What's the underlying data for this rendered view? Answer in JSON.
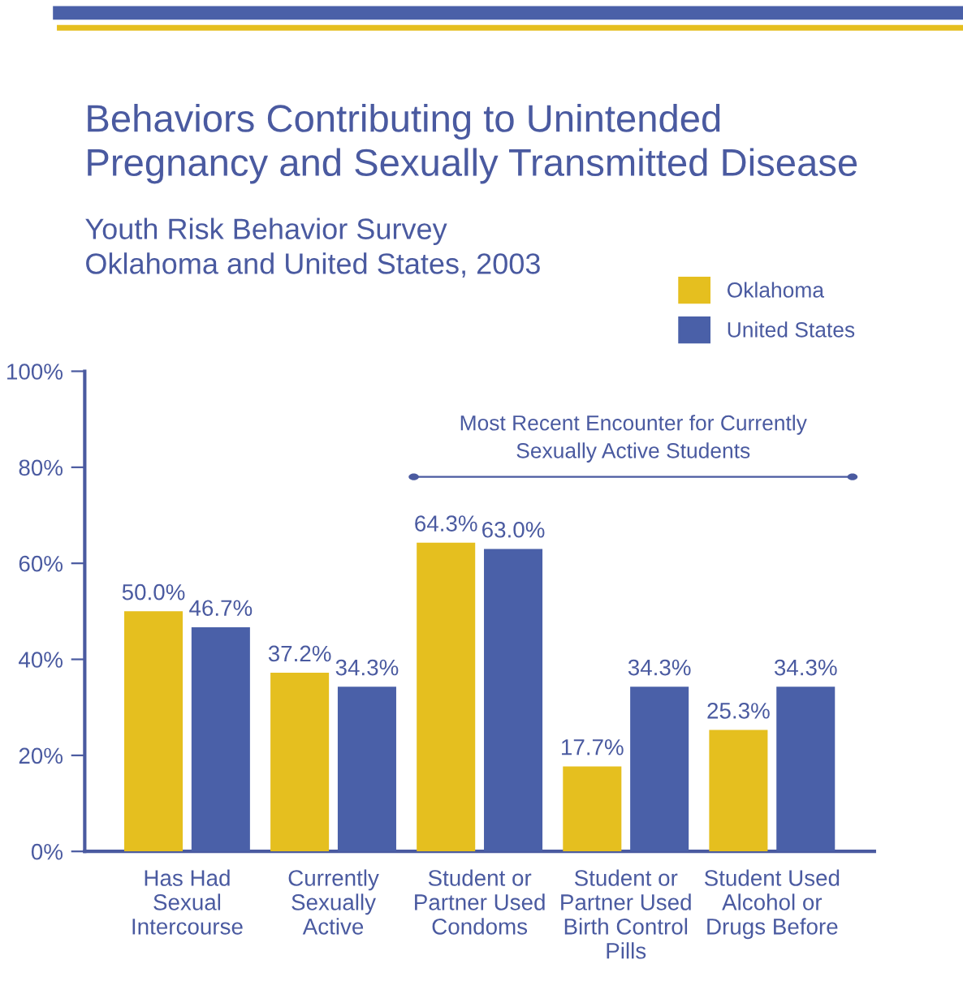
{
  "chart_data": {
    "type": "bar",
    "title": "Behaviors Contributing to Unintended\nPregnancy and Sexually Transmitted Disease",
    "subtitle": "Youth Risk Behavior Survey\nOklahoma and United States, 2003",
    "categories": [
      "Has Had\nSexual\nIntercourse",
      "Currently\nSexually\nActive",
      "Student or\nPartner Used\nCondoms",
      "Student or\nPartner Used\nBirth Control\nPills",
      "Student Used\nAlcohol or\nDrugs Before"
    ],
    "series": [
      {
        "name": "Oklahoma",
        "color": "#e5bf1f",
        "values": [
          50.0,
          37.2,
          64.3,
          17.7,
          25.3
        ]
      },
      {
        "name": "United States",
        "color": "#4a60a8",
        "values": [
          46.7,
          34.3,
          63.0,
          34.3,
          34.3
        ]
      }
    ],
    "ylim": [
      0,
      100
    ],
    "yticks": [
      {
        "value": 0,
        "label": "0%"
      },
      {
        "value": 20,
        "label": "20%"
      },
      {
        "value": 40,
        "label": "40%"
      },
      {
        "value": 60,
        "label": "60%"
      },
      {
        "value": 80,
        "label": "80%"
      },
      {
        "value": 100,
        "label": "100%"
      }
    ],
    "value_labels": [
      [
        "50.0%",
        "37.2%",
        "64.3%",
        "17.7%",
        "25.3%"
      ],
      [
        "46.7%",
        "34.3%",
        "63.0%",
        "34.3%",
        "34.3%"
      ]
    ],
    "annotations": [
      "Most Recent Encounter for Currently\nSexually Active Students"
    ],
    "grid": false,
    "legend": "top right"
  }
}
